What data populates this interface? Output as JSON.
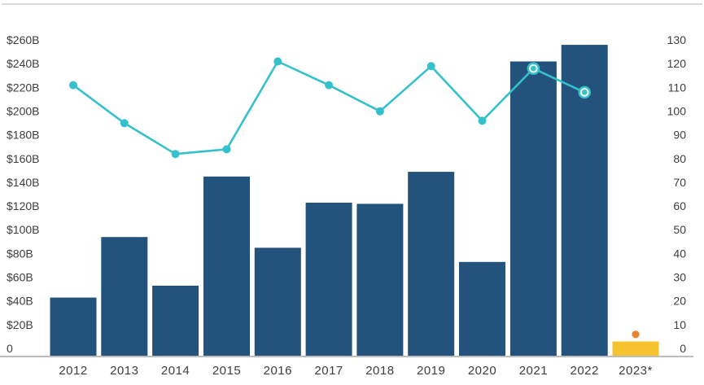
{
  "chart_data": {
    "type": "combo-bar-line",
    "title": "",
    "categories": [
      "2012",
      "2013",
      "2014",
      "2015",
      "2016",
      "2017",
      "2018",
      "2019",
      "2020",
      "2021",
      "2022",
      "2023*"
    ],
    "bar_series": {
      "name": "dollar-value-billions-left-axis",
      "values": [
        49,
        100,
        59,
        151,
        91,
        129,
        128,
        155,
        79,
        248,
        262,
        12
      ],
      "final_bar_is_estimate": true,
      "estimate_category": "2023*"
    },
    "line_series": {
      "name": "count-right-axis",
      "values": [
        114,
        98,
        85,
        87,
        124,
        114,
        103,
        122,
        99,
        121,
        111
      ],
      "categories_covered": [
        "2012",
        "2013",
        "2014",
        "2015",
        "2016",
        "2017",
        "2018",
        "2019",
        "2020",
        "2021",
        "2022"
      ],
      "highlighted_categories": [
        "2021",
        "2022"
      ]
    },
    "estimate_point": {
      "category": "2023*",
      "value": 9
    },
    "left_axis": {
      "min": 0,
      "max": 260,
      "step": 20,
      "tick_labels": [
        "$260B",
        "$240B",
        "$220B",
        "$200B",
        "$180B",
        "$160B",
        "$140B",
        "$120B",
        "$100B",
        "$80B",
        "$60B",
        "$40B",
        "$20B",
        "0"
      ]
    },
    "right_axis": {
      "min": 0,
      "max": 130,
      "step": 10,
      "tick_labels": [
        "130",
        "120",
        "110",
        "100",
        "90",
        "80",
        "70",
        "60",
        "50",
        "40",
        "30",
        "20",
        "10",
        "0"
      ]
    },
    "grid": "none",
    "legend": "none"
  },
  "colors": {
    "bar": "#23527C",
    "estimate_bar": "#F5C32E",
    "line": "#35C1CC",
    "marker": "#35C1CC",
    "marker_ring": "#FFFFFF",
    "estimate_point": "#E8822F",
    "axis_text": "#3D3D3D",
    "top_rule": "#CBCBCB",
    "baseline": "#BCBCBC",
    "background": "#FFFFFF"
  }
}
